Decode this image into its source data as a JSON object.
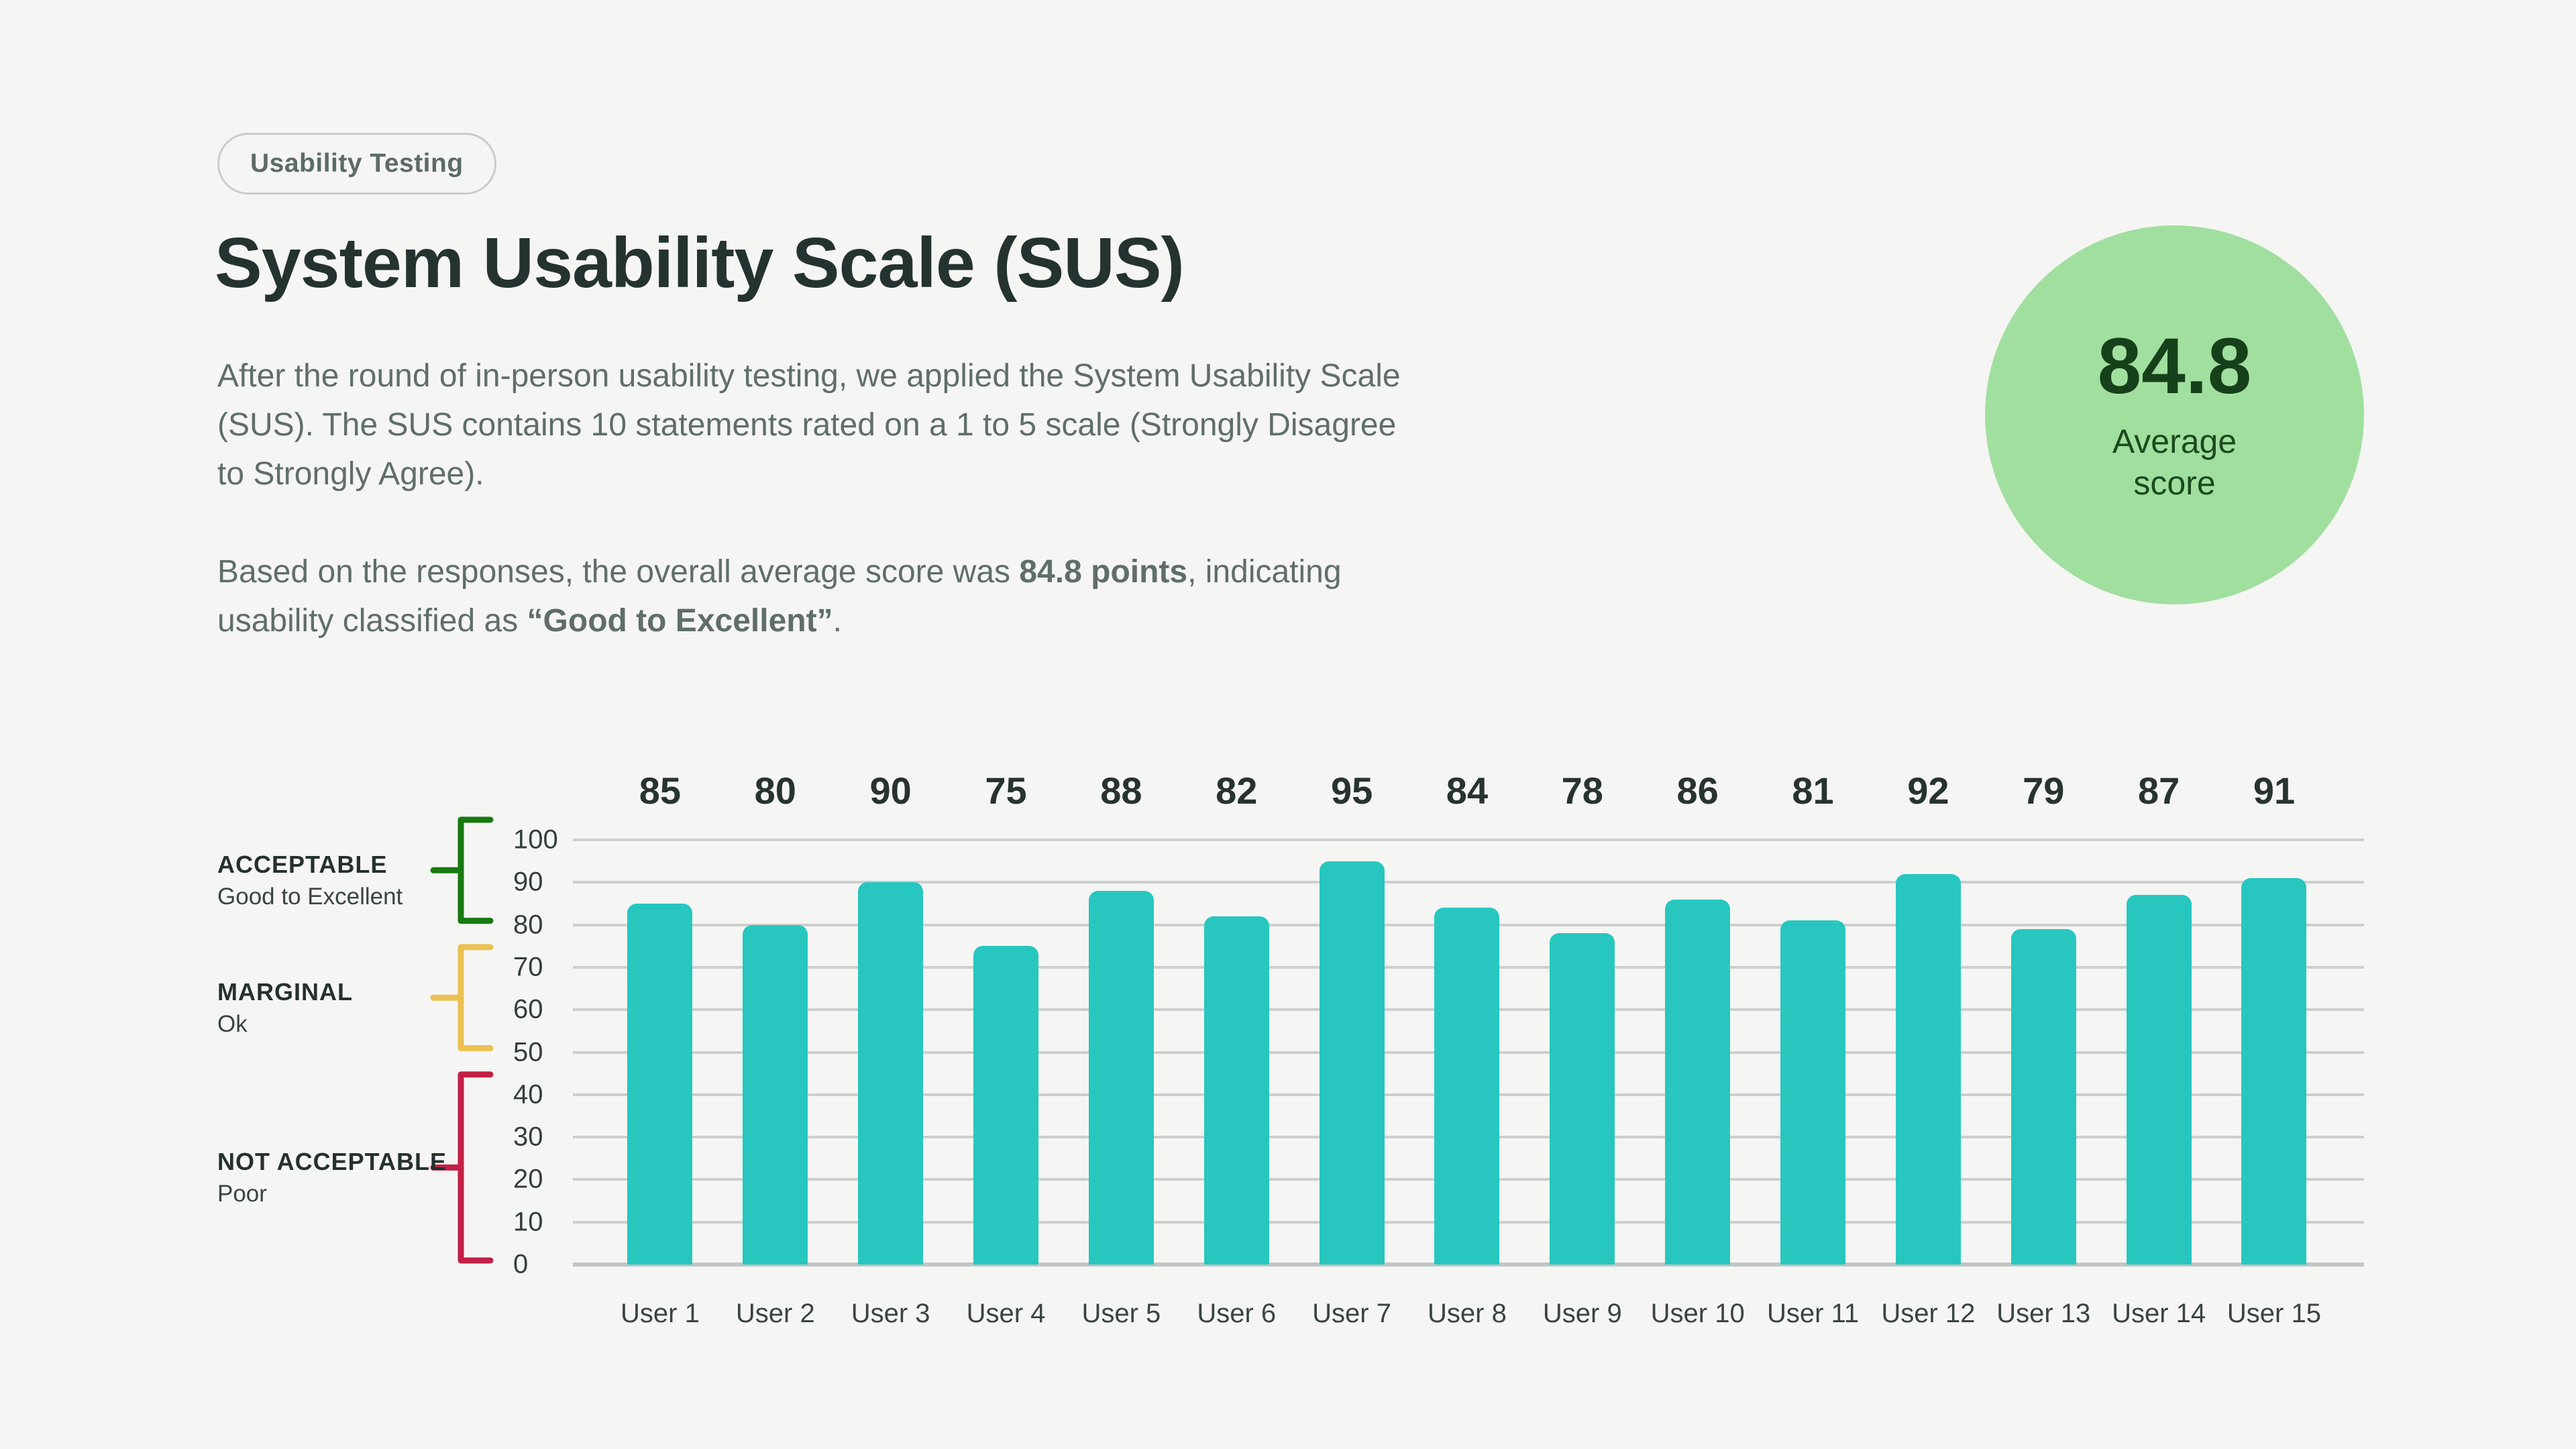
{
  "page": {
    "background": "#F5F5F4"
  },
  "badge": {
    "label": "Usability Testing"
  },
  "header": {
    "title": "System Usability Scale (SUS)"
  },
  "intro": {
    "paragraph1": "After the round of in-person usability testing, we applied the System Usability Scale\n(SUS). The SUS contains 10 statements rated on a 1 to 5 scale (Strongly Disagree\nto Strongly Agree).",
    "paragraph2_part1": "Based on the responses, the overall average score was ",
    "paragraph2_bold1": "84.8 points",
    "paragraph2_part2": ", indicating\nusability classified as ",
    "paragraph2_bold2": "“Good to Excellent”",
    "paragraph2_part3": "."
  },
  "score_badge": {
    "value": "84.8",
    "label": "Average\nscore",
    "bg_color": "#A1DF9F",
    "text_color": "#16401A"
  },
  "chart_data": {
    "type": "bar",
    "title": "",
    "xlabel": "",
    "ylabel": "",
    "categories": [
      "User 1",
      "User 2",
      "User 3",
      "User 4",
      "User 5",
      "User 6",
      "User 7",
      "User 8",
      "User 9",
      "User 10",
      "User 11",
      "User 12",
      "User 13",
      "User 14",
      "User 15"
    ],
    "values": [
      85,
      80,
      90,
      75,
      88,
      82,
      95,
      84,
      78,
      86,
      81,
      92,
      79,
      87,
      91
    ],
    "average": 84.8,
    "ylim": [
      0,
      100
    ],
    "yticks": [
      0,
      10,
      20,
      30,
      40,
      50,
      60,
      70,
      80,
      90,
      100
    ],
    "grid": true,
    "bar_color": "#27C7BF",
    "value_labels_position": "top-row",
    "legend_position": "left",
    "bands": [
      {
        "label": "ACCEPTABLE",
        "sublabel": "Good to Excellent",
        "range": [
          80,
          100
        ],
        "color": "#177A10"
      },
      {
        "label": "MARGINAL",
        "sublabel": "Ok",
        "range": [
          50,
          70
        ],
        "color": "#ECC152"
      },
      {
        "label": "NOT ACCEPTABLE",
        "sublabel": "Poor",
        "range": [
          0,
          40
        ],
        "color": "#C32045"
      }
    ]
  }
}
